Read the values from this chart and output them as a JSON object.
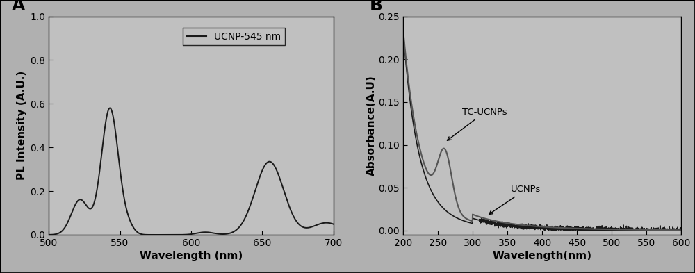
{
  "panel_A": {
    "label": "A",
    "xlabel": "Wavelength (nm)",
    "ylabel": "PL Intensity (A.U.)",
    "xlim": [
      500,
      700
    ],
    "ylim": [
      0.0,
      1.0
    ],
    "xticks": [
      500,
      550,
      600,
      650,
      700
    ],
    "yticks": [
      0.0,
      0.2,
      0.4,
      0.6,
      0.8,
      1.0
    ],
    "legend_label": "UCNP-545 nm",
    "line_color": "#1a1a1a",
    "background_color": "#c0c0c0"
  },
  "panel_B": {
    "label": "B",
    "xlabel": "Wavelength(nm)",
    "ylabel": "Absorbance(A.U)",
    "xlim": [
      200,
      600
    ],
    "ylim": [
      -0.005,
      0.25
    ],
    "xticks": [
      200,
      250,
      300,
      350,
      400,
      450,
      500,
      550,
      600
    ],
    "yticks": [
      0.0,
      0.05,
      0.1,
      0.15,
      0.2,
      0.25
    ],
    "tc_ucnps_label": "TC-UCNPs",
    "ucnps_label": "UCNPs",
    "tc_color": "#555555",
    "ucnp_color": "#1a1a1a",
    "background_color": "#c0c0c0"
  },
  "fig_background": "#b0b0b0"
}
